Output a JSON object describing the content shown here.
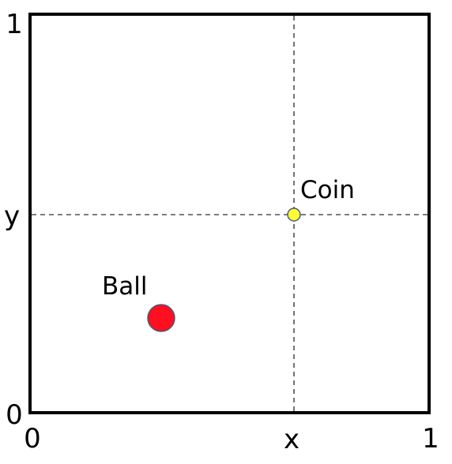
{
  "axes": {
    "x_min": 0,
    "x_max": 1,
    "y_min": 0,
    "y_max": 1,
    "x_label": "x",
    "y_label": "y"
  },
  "objects": [
    {
      "label": "Coin"
    },
    {
      "label": "Ball"
    }
  ]
}
